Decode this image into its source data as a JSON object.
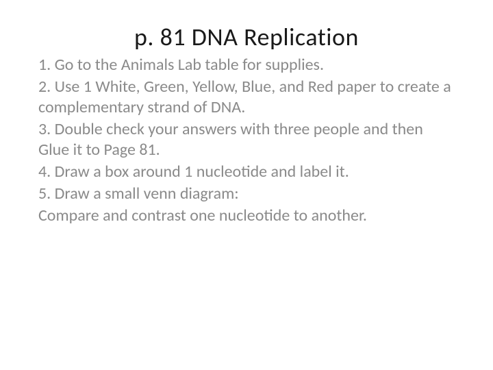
{
  "title": "p. 81  DNA Replication",
  "lines": [
    "1. Go to the Animals Lab table for supplies.",
    "2. Use 1 White, Green, Yellow, Blue, and Red paper to create a complementary strand of DNA.",
    "3. Double check your answers with three people and then Glue it to Page 81.",
    "4. Draw a box around 1 nucleotide and label it.",
    "5. Draw a small venn diagram:",
    "Compare and contrast one nucleotide to another."
  ],
  "colors": {
    "title": "#1a1a1a",
    "body": "#8a8a8a",
    "background": "#ffffff"
  },
  "typography": {
    "title_fontsize": 36,
    "body_fontsize": 24,
    "font_family": "Calibri"
  }
}
